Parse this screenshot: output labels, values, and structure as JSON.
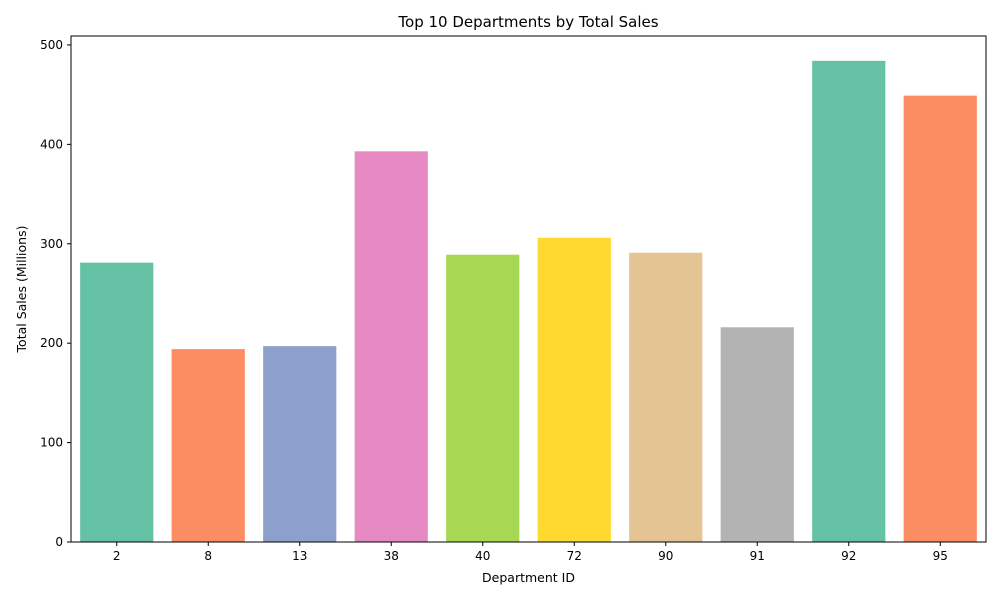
{
  "chart_data": {
    "type": "bar",
    "title": "Top 10 Departments by Total Sales",
    "xlabel": "Department ID",
    "ylabel": "Total Sales (Millions)",
    "categories": [
      "2",
      "8",
      "13",
      "38",
      "40",
      "72",
      "90",
      "91",
      "92",
      "95"
    ],
    "values": [
      281,
      194,
      197,
      393,
      289,
      306,
      291,
      216,
      484,
      449
    ],
    "colors": [
      "#66c2a5",
      "#fc8d62",
      "#8da0cb",
      "#e78ac3",
      "#a6d854",
      "#ffd92f",
      "#e5c494",
      "#b3b3b3",
      "#66c2a5",
      "#fc8d62"
    ],
    "ylim": [
      0,
      509
    ],
    "yticks": [
      0,
      100,
      200,
      300,
      400,
      500
    ],
    "grid": false,
    "legend": "none"
  }
}
